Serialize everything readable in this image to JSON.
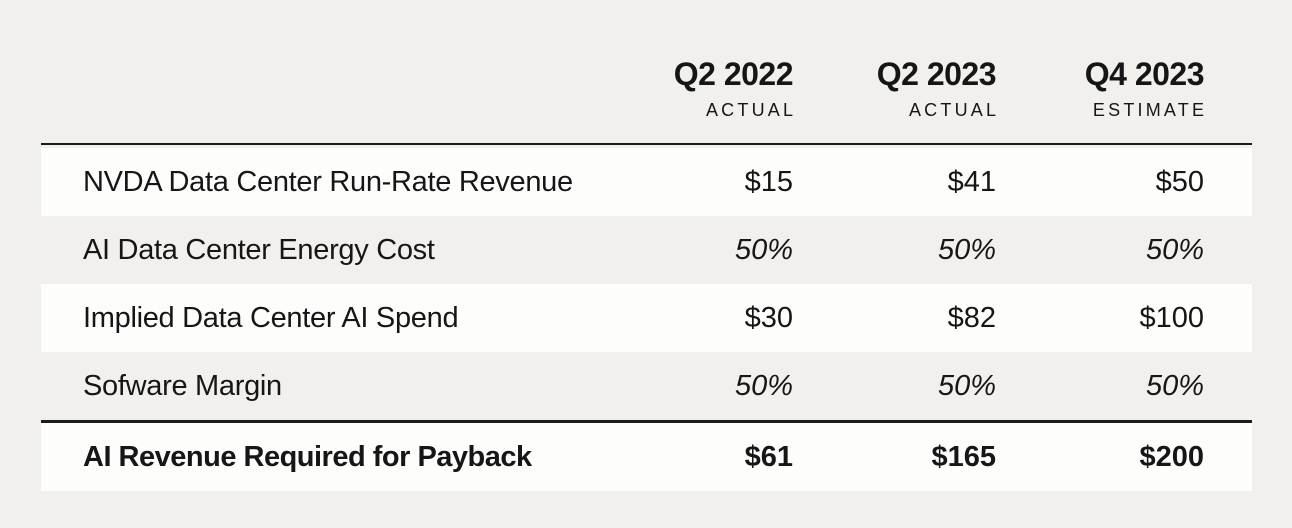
{
  "chart_data": {
    "type": "table",
    "columns": [
      {
        "period": "Q2 2022",
        "qualifier": "ACTUAL"
      },
      {
        "period": "Q2 2023",
        "qualifier": "ACTUAL"
      },
      {
        "period": "Q4 2023",
        "qualifier": "ESTIMATE"
      }
    ],
    "rows": [
      {
        "label": "NVDA Data Center Run-Rate Revenue",
        "values": [
          "$15",
          "$41",
          "$50"
        ],
        "emphasis": "normal"
      },
      {
        "label": "AI Data Center Energy Cost",
        "values": [
          "50%",
          "50%",
          "50%"
        ],
        "emphasis": "italic"
      },
      {
        "label": "Implied Data Center AI Spend",
        "values": [
          "$30",
          "$82",
          "$100"
        ],
        "emphasis": "normal"
      },
      {
        "label": "Sofware Margin",
        "values": [
          "50%",
          "50%",
          "50%"
        ],
        "emphasis": "italic"
      },
      {
        "label": "AI Revenue Required for Payback",
        "values": [
          "$61",
          "$165",
          "$200"
        ],
        "emphasis": "bold"
      }
    ],
    "layout": {
      "striped_rows": true,
      "value_alignment": "right",
      "total_row_separated_by_rule": true
    },
    "colors": {
      "background": "#f2f0ec",
      "row_white": "#fdfdfc",
      "rule": "#1c1c1c",
      "text": "#161616"
    }
  }
}
